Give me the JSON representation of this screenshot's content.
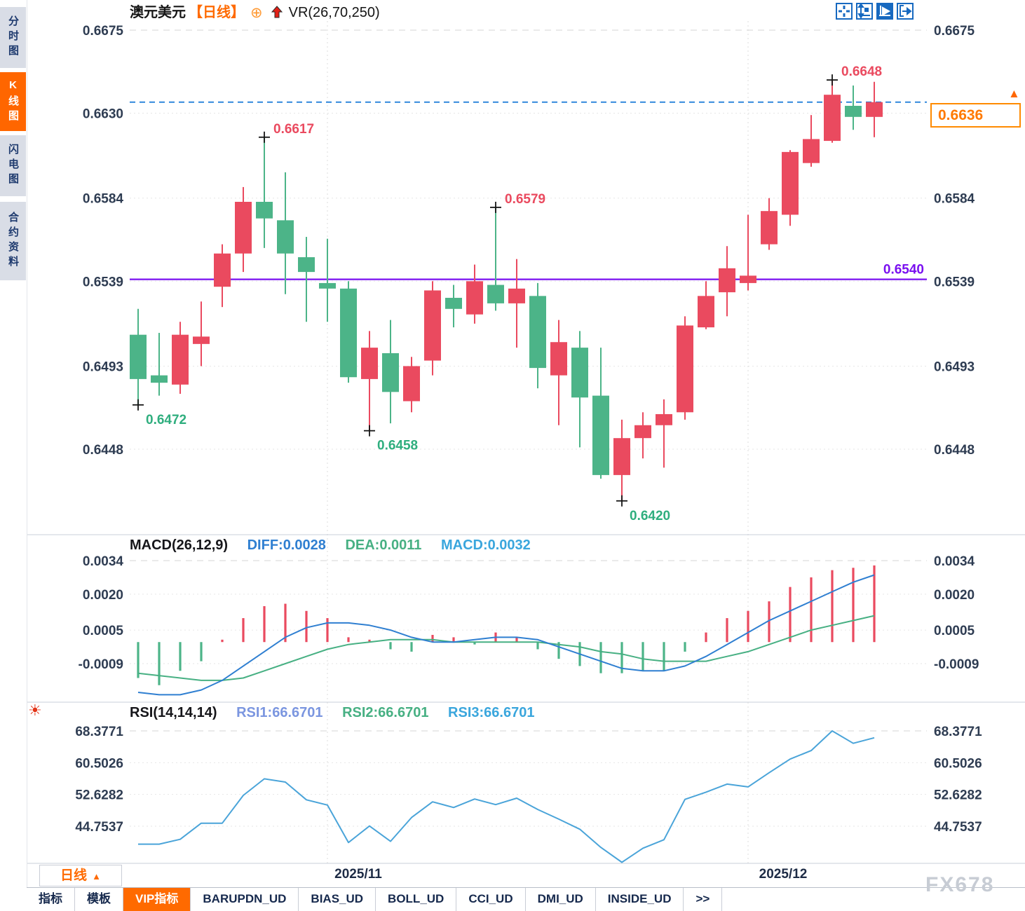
{
  "window": {
    "watermark": "FX678"
  },
  "sidebar": {
    "items": [
      {
        "label": "分时图",
        "active": false
      },
      {
        "label": "K线图",
        "active": true
      },
      {
        "label": "闪电图",
        "active": false
      },
      {
        "label": "合约资料",
        "active": false
      }
    ]
  },
  "header": {
    "symbol": "澳元美元",
    "period_tag": "【日线】",
    "target_icon": "⊕",
    "overlay_indicator": "VR(26,70,250)"
  },
  "toolbar": {
    "icons": [
      "crosshair-pan",
      "axis-zoom",
      "auto-scroll",
      "shift-right"
    ]
  },
  "price_box": {
    "value": "0.6636",
    "arrow": "▲"
  },
  "chart_data": [
    {
      "type": "candlestick",
      "title": "澳元美元 日线",
      "y_ticks": [
        0.6675,
        0.663,
        0.6584,
        0.6539,
        0.6493,
        0.6448
      ],
      "ylim": [
        0.6448,
        0.6675
      ],
      "ohlc": [
        [
          0.651,
          0.6524,
          0.6472,
          0.6486
        ],
        [
          0.6488,
          0.6511,
          0.6477,
          0.6484
        ],
        [
          0.6483,
          0.6517,
          0.6478,
          0.651
        ],
        [
          0.6505,
          0.6528,
          0.6493,
          0.6509
        ],
        [
          0.6536,
          0.6559,
          0.6525,
          0.6554
        ],
        [
          0.6554,
          0.659,
          0.6544,
          0.6582
        ],
        [
          0.6582,
          0.6617,
          0.6557,
          0.6573
        ],
        [
          0.6572,
          0.6598,
          0.6532,
          0.6554
        ],
        [
          0.6552,
          0.6563,
          0.6517,
          0.6544
        ],
        [
          0.6538,
          0.6562,
          0.6517,
          0.6535
        ],
        [
          0.6535,
          0.6539,
          0.6484,
          0.6487
        ],
        [
          0.6486,
          0.6512,
          0.6458,
          0.6503
        ],
        [
          0.65,
          0.6518,
          0.6462,
          0.6479
        ],
        [
          0.6474,
          0.6498,
          0.6468,
          0.6493
        ],
        [
          0.6496,
          0.6539,
          0.6488,
          0.6534
        ],
        [
          0.653,
          0.6537,
          0.6514,
          0.6524
        ],
        [
          0.6521,
          0.6548,
          0.6516,
          0.6539
        ],
        [
          0.6537,
          0.6579,
          0.6523,
          0.6527
        ],
        [
          0.6527,
          0.6551,
          0.6503,
          0.6535
        ],
        [
          0.6531,
          0.6538,
          0.6481,
          0.6492
        ],
        [
          0.6488,
          0.6518,
          0.6461,
          0.6506
        ],
        [
          0.6503,
          0.6512,
          0.6449,
          0.6476
        ],
        [
          0.6477,
          0.6503,
          0.6432,
          0.6434
        ],
        [
          0.6434,
          0.6464,
          0.642,
          0.6454
        ],
        [
          0.6454,
          0.6468,
          0.6443,
          0.6461
        ],
        [
          0.6461,
          0.6475,
          0.6438,
          0.6467
        ],
        [
          0.6468,
          0.652,
          0.6464,
          0.6515
        ],
        [
          0.6514,
          0.6539,
          0.6513,
          0.6531
        ],
        [
          0.6533,
          0.6558,
          0.652,
          0.6546
        ],
        [
          0.6538,
          0.6575,
          0.6534,
          0.6542
        ],
        [
          0.6559,
          0.6584,
          0.6556,
          0.6577
        ],
        [
          0.6575,
          0.661,
          0.6569,
          0.6609
        ],
        [
          0.6603,
          0.6629,
          0.6601,
          0.6616
        ],
        [
          0.6615,
          0.6648,
          0.6614,
          0.664
        ],
        [
          0.6634,
          0.6645,
          0.6621,
          0.6628
        ],
        [
          0.6628,
          0.6647,
          0.6617,
          0.6636
        ]
      ],
      "annotations": [
        {
          "index": 0,
          "side": "low",
          "label": "0.6472"
        },
        {
          "index": 6,
          "side": "high",
          "label": "0.6617"
        },
        {
          "index": 11,
          "side": "low",
          "label": "0.6458"
        },
        {
          "index": 17,
          "side": "high",
          "label": "0.6579"
        },
        {
          "index": 23,
          "side": "low",
          "label": "0.6420"
        },
        {
          "index": 33,
          "side": "high",
          "label": "0.6648"
        }
      ],
      "support_line": {
        "value": 0.654,
        "label": "0.6540"
      },
      "last_price": {
        "value": 0.6636,
        "label": "0.6636"
      },
      "month_marks": [
        {
          "index": 9,
          "label": "2025/11"
        },
        {
          "index": 29,
          "label": "2025/12"
        }
      ]
    },
    {
      "type": "bar",
      "name": "MACD",
      "params_label": "MACD(26,12,9)",
      "legend": {
        "diff": "DIFF:0.0028",
        "dea": "DEA:0.0011",
        "macd": "MACD:0.0032"
      },
      "y_ticks": [
        0.0034,
        0.002,
        0.0005,
        -0.0009
      ],
      "histogram": [
        -0.0015,
        -0.0018,
        -0.0012,
        -0.0008,
        0.0001,
        0.001,
        0.0015,
        0.0016,
        0.0013,
        0.001,
        0.0002,
        0.0001,
        -0.0003,
        -0.0004,
        0.0003,
        0.0002,
        -0.0001,
        0.0004,
        0.0002,
        -0.0003,
        -0.0007,
        -0.001,
        -0.0013,
        -0.0013,
        -0.0012,
        -0.0012,
        -0.0004,
        0.0004,
        0.001,
        0.0013,
        0.0017,
        0.0023,
        0.0027,
        0.003,
        0.0031,
        0.0032
      ],
      "diff": [
        -0.0021,
        -0.0022,
        -0.0022,
        -0.002,
        -0.0016,
        -0.001,
        -0.0004,
        0.0002,
        0.0006,
        0.0008,
        0.0008,
        0.0007,
        0.0005,
        0.0002,
        0.0,
        0.0,
        0.0001,
        0.0002,
        0.0002,
        0.0001,
        -0.0002,
        -0.0005,
        -0.0008,
        -0.0011,
        -0.0012,
        -0.0012,
        -0.001,
        -0.0006,
        -0.0001,
        0.0004,
        0.0009,
        0.0013,
        0.0017,
        0.0021,
        0.0025,
        0.0028
      ],
      "dea": [
        -0.0013,
        -0.0014,
        -0.0015,
        -0.0016,
        -0.0016,
        -0.0015,
        -0.0012,
        -0.0009,
        -0.0006,
        -0.0003,
        -0.0001,
        0.0,
        0.0001,
        0.0001,
        0.0001,
        0.0,
        0.0,
        0.0,
        0.0,
        0.0,
        -0.0001,
        -0.0002,
        -0.0004,
        -0.0005,
        -0.0007,
        -0.0008,
        -0.0008,
        -0.0008,
        -0.0006,
        -0.0004,
        -0.0001,
        0.0002,
        0.0005,
        0.0007,
        0.0009,
        0.0011
      ]
    },
    {
      "type": "line",
      "name": "RSI",
      "params_label": "RSI(14,14,14)",
      "legend": {
        "rsi1": "RSI1:66.6701",
        "rsi2": "RSI2:66.6701",
        "rsi3": "RSI3:66.6701"
      },
      "y_ticks": [
        68.3771,
        60.5026,
        52.6282,
        44.7537
      ],
      "values": [
        40.3,
        40.3,
        41.5,
        45.5,
        45.5,
        52.4,
        56.5,
        55.7,
        51.3,
        50.0,
        40.7,
        44.8,
        41.0,
        46.9,
        50.8,
        49.4,
        51.5,
        50.1,
        51.7,
        48.9,
        46.5,
        44.0,
        39.5,
        35.8,
        39.3,
        41.4,
        51.4,
        53.2,
        55.2,
        54.5,
        58.0,
        61.4,
        63.5,
        68.3771,
        65.3,
        66.6701
      ]
    }
  ],
  "bottom": {
    "period_button": {
      "label": "日线",
      "arrow": "▲"
    },
    "date_labels": [
      "2025/11",
      "2025/12"
    ],
    "tabs": [
      {
        "label": "指标",
        "active": false
      },
      {
        "label": "模板",
        "active": false
      },
      {
        "label": "VIP指标",
        "active": true
      },
      {
        "label": "BARUPDN_UD",
        "active": false
      },
      {
        "label": "BIAS_UD",
        "active": false
      },
      {
        "label": "BOLL_UD",
        "active": false
      },
      {
        "label": "CCI_UD",
        "active": false
      },
      {
        "label": "DMI_UD",
        "active": false
      },
      {
        "label": "INSIDE_UD",
        "active": false
      },
      {
        "label": ">>",
        "active": false
      }
    ]
  },
  "colors": {
    "up": "#ea4a5f",
    "down": "#4cb488",
    "support": "#7a10f0",
    "last_price_line": "#1779d8",
    "accent": "#ff6600",
    "diff_line": "#2f7fd1",
    "dea_line": "#47b083",
    "rsi_line": "#4aa4d9",
    "macd_text": "#3aa6dd",
    "rsi1_text": "#7b96e0",
    "annotation_high": "#ea4a5f",
    "annotation_low": "#2fae7e",
    "axis_text": "#2e3c52",
    "grid": "#e6e6e6"
  }
}
